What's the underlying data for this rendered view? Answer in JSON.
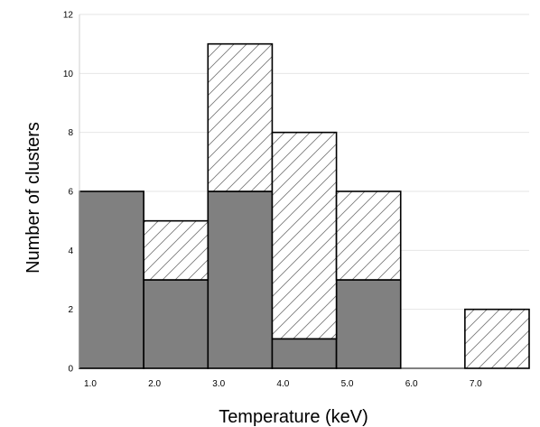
{
  "chart_data": {
    "type": "bar",
    "stacked": true,
    "xlabel": "Temperature (keV)",
    "ylabel": "Number of clusters",
    "x_tick_labels": [
      "1.0",
      "2.0",
      "3.0",
      "4.0",
      "5.0",
      "6.0",
      "7.0"
    ],
    "y_tick_labels": [
      "0",
      "2",
      "4",
      "6",
      "8",
      "10",
      "12"
    ],
    "xlim": [
      1.0,
      8.0
    ],
    "ylim": [
      0,
      12
    ],
    "bin_width": 1.0,
    "bin_starts": [
      1.0,
      2.0,
      3.0,
      4.0,
      5.0,
      6.0,
      7.0
    ],
    "series": [
      {
        "values": [
          6,
          3,
          6,
          1,
          3,
          0,
          0
        ],
        "fill": "#808080",
        "pattern": "solid"
      },
      {
        "values": [
          0,
          2,
          5,
          7,
          3,
          0,
          2
        ],
        "fill": "#ffffff",
        "pattern": "hatched"
      }
    ],
    "grid": true
  }
}
